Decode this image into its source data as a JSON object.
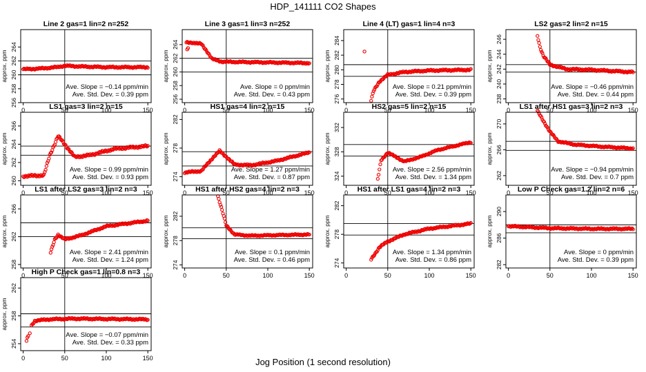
{
  "page": {
    "title": "HDP_141111  CO2 Shapes",
    "xlabel": "Jog Position (1 second resolution)"
  },
  "chart_data": [
    {
      "type": "scatter",
      "title": "Line 2 gas=1 lin=2 n=252",
      "ylabel": "approx. ppm",
      "xlim": [
        -3,
        154
      ],
      "ylim": [
        256,
        266.5
      ],
      "yticks": [
        256,
        258,
        260,
        262,
        264
      ],
      "xticks": [
        0,
        50,
        100,
        150
      ],
      "hlines": [
        262,
        260
      ],
      "vline": 50,
      "annotation": [
        "Ave. Slope = −0.14  ppm/min",
        "Ave. Std. Dev. = 0.39  ppm"
      ],
      "curve": {
        "start": 0,
        "end": 150,
        "points": [
          [
            0,
            260.8
          ],
          [
            20,
            260.9
          ],
          [
            40,
            261.1
          ],
          [
            50,
            261.3
          ],
          [
            70,
            261.2
          ],
          [
            100,
            261.1
          ],
          [
            150,
            261.1
          ]
        ]
      }
    },
    {
      "type": "scatter",
      "title": "Line 3 gas=1 lin=3 n=252",
      "ylabel": "approx. ppm",
      "xlim": [
        -3,
        154
      ],
      "ylim": [
        255.5,
        266.2
      ],
      "yticks": [
        256,
        258,
        260,
        262,
        264
      ],
      "xticks": [
        0,
        50,
        100,
        150
      ],
      "hlines": [
        262,
        260
      ],
      "vline": 50,
      "annotation": [
        "Ave. Slope = 0  ppm/min",
        "Ave. Std. Dev. = 0.43  ppm"
      ],
      "curve": {
        "start": 2,
        "end": 150,
        "points": [
          [
            2,
            264.3
          ],
          [
            10,
            264.3
          ],
          [
            20,
            264.1
          ],
          [
            27,
            263.0
          ],
          [
            33,
            261.9
          ],
          [
            45,
            261.5
          ],
          [
            150,
            261.3
          ]
        ]
      },
      "outliers": [
        [
          3,
          263.3
        ],
        [
          4,
          263.5
        ]
      ]
    },
    {
      "type": "scatter",
      "title": "Line 4 (LT) gas=1 lin=4 n=3",
      "ylabel": "approx. ppm",
      "xlim": [
        -3,
        154
      ],
      "ylim": [
        275.5,
        285.5
      ],
      "yticks": [
        276,
        278,
        280,
        282,
        284
      ],
      "xticks": [
        0,
        50,
        100,
        150
      ],
      "hlines": [
        280.7,
        279.1
      ],
      "vline": 50,
      "annotation": [
        "Ave. Slope = 0.21  ppm/min",
        "Ave. Std. Dev. = 0.39  ppm"
      ],
      "curve": {
        "start": 30,
        "end": 150,
        "points": [
          [
            30,
            275.8
          ],
          [
            33,
            277.1
          ],
          [
            40,
            278.4
          ],
          [
            50,
            279.3
          ],
          [
            70,
            279.7
          ],
          [
            100,
            279.9
          ],
          [
            150,
            280.0
          ]
        ]
      },
      "outliers": [
        [
          22,
          282.5
        ]
      ]
    },
    {
      "type": "scatter",
      "title": "LS2 gas=2 lin=2 n=15",
      "ylabel": "approx. ppm",
      "xlim": [
        -3,
        154
      ],
      "ylim": [
        237.5,
        247.3
      ],
      "yticks": [
        238,
        240,
        242,
        244,
        246
      ],
      "xticks": [
        0,
        50,
        100,
        150
      ],
      "hlines": [
        242.6,
        241.6
      ],
      "vline": 50,
      "annotation": [
        "Ave. Slope = −0.46  ppm/min",
        "Ave. Std. Dev. = 0.44  ppm"
      ],
      "curve": {
        "start": 35,
        "end": 150,
        "points": [
          [
            35,
            246.5
          ],
          [
            38,
            245.0
          ],
          [
            42,
            243.8
          ],
          [
            50,
            242.6
          ],
          [
            70,
            242.0
          ],
          [
            100,
            241.9
          ],
          [
            150,
            241.6
          ]
        ]
      }
    },
    {
      "type": "scatter",
      "title": "LS1 gas=3 lin=2 n=15",
      "ylabel": "approx. ppm",
      "xlim": [
        -3,
        154
      ],
      "ylim": [
        259.5,
        267.5
      ],
      "yticks": [
        260,
        262,
        264,
        266
      ],
      "xticks": [
        0,
        50,
        100,
        150
      ],
      "hlines": [
        263.8,
        262.8
      ],
      "vline": 50,
      "annotation": [
        "Ave. Slope = 0.99  ppm/min",
        "Ave. Std. Dev. = 0.93  ppm"
      ],
      "curve": {
        "start": 0,
        "end": 150,
        "points": [
          [
            0,
            260.5
          ],
          [
            25,
            260.6
          ],
          [
            32,
            262.8
          ],
          [
            42,
            264.9
          ],
          [
            50,
            264.0
          ],
          [
            62,
            262.6
          ],
          [
            80,
            262.8
          ],
          [
            110,
            263.5
          ],
          [
            150,
            263.8
          ]
        ]
      }
    },
    {
      "type": "scatter",
      "title": "HS1 gas=4 lin=2 n=15",
      "ylabel": "approx. ppm",
      "xlim": [
        -3,
        154
      ],
      "ylim": [
        272.8,
        283
      ],
      "yticks": [
        274,
        278,
        282
      ],
      "xticks": [
        0,
        50,
        100,
        150
      ],
      "hlines": [
        277.5,
        275.5
      ],
      "vline": 50,
      "annotation": [
        "Ave. Slope = 1.27  ppm/min",
        "Ave. Std. Dev. = 0.87  ppm"
      ],
      "curve": {
        "start": 0,
        "end": 150,
        "points": [
          [
            0,
            274.6
          ],
          [
            20,
            274.8
          ],
          [
            35,
            276.8
          ],
          [
            42,
            277.6
          ],
          [
            50,
            276.8
          ],
          [
            60,
            275.7
          ],
          [
            80,
            275.6
          ],
          [
            110,
            276.2
          ],
          [
            150,
            277.4
          ]
        ]
      }
    },
    {
      "type": "scatter",
      "title": "HS2 gas=5 lin=2 n=15",
      "ylabel": "approx. ppm",
      "xlim": [
        -3,
        154
      ],
      "ylim": [
        322.5,
        334.5
      ],
      "yticks": [
        324,
        328,
        332
      ],
      "xticks": [
        0,
        50,
        100,
        150
      ],
      "hlines": [
        329.2,
        327.3
      ],
      "vline": 50,
      "annotation": [
        "Ave. Slope = 2.56  ppm/min",
        "Ave. Std. Dev. = 1.34  ppm"
      ],
      "curve": {
        "start": 38,
        "end": 150,
        "points": [
          [
            38,
            323.5
          ],
          [
            42,
            326.6
          ],
          [
            50,
            327.9
          ],
          [
            70,
            326.4
          ],
          [
            90,
            327.2
          ],
          [
            110,
            328.3
          ],
          [
            150,
            329.6
          ]
        ]
      }
    },
    {
      "type": "scatter",
      "title": "LS1 after HS1 gas=3 lin=2 n=3",
      "ylabel": "approx. ppm",
      "xlim": [
        -3,
        154
      ],
      "ylim": [
        260.5,
        271.8
      ],
      "yticks": [
        262,
        266,
        270
      ],
      "xticks": [
        0,
        50,
        100,
        150
      ],
      "hlines": [
        267.3,
        265.9
      ],
      "vline": 50,
      "annotation": [
        "Ave. Slope = −0.94  ppm/min",
        "Ave. Std. Dev. = 0.7  ppm"
      ],
      "curve": {
        "start": 35,
        "end": 150,
        "points": [
          [
            35,
            272.0
          ],
          [
            42,
            270.5
          ],
          [
            50,
            268.8
          ],
          [
            60,
            267.3
          ],
          [
            80,
            266.8
          ],
          [
            110,
            266.5
          ],
          [
            150,
            266.2
          ]
        ]
      }
    },
    {
      "type": "scatter",
      "title": "LS1 after LS2 gas=3 lin=2 n=3",
      "ylabel": "approx. ppm",
      "xlim": [
        -3,
        154
      ],
      "ylim": [
        257.5,
        268
      ],
      "yticks": [
        258,
        262,
        266
      ],
      "xticks": [
        0,
        50,
        100,
        150
      ],
      "hlines": [
        264.0,
        262.0
      ],
      "vline": 50,
      "annotation": [
        "Ave. Slope = 2.41  ppm/min",
        "Ave. Std. Dev. = 1.24  ppm"
      ],
      "curve": {
        "start": 33,
        "end": 150,
        "points": [
          [
            33,
            259.7
          ],
          [
            38,
            261.6
          ],
          [
            42,
            262.3
          ],
          [
            50,
            261.6
          ],
          [
            70,
            262.2
          ],
          [
            100,
            263.5
          ],
          [
            150,
            264.3
          ]
        ]
      }
    },
    {
      "type": "scatter",
      "title": "HS1 after HS2 gas=4 lin=2 n=3",
      "ylabel": "approx. ppm",
      "xlim": [
        -3,
        154
      ],
      "ylim": [
        273.5,
        285.5
      ],
      "yticks": [
        274,
        278,
        282
      ],
      "xticks": [
        0,
        50,
        100,
        150
      ],
      "hlines": [
        280.1,
        278.3
      ],
      "vline": 50,
      "annotation": [
        "Ave. Slope = 0.1  ppm/min",
        "Ave. Std. Dev. = 0.46  ppm"
      ],
      "curve": {
        "start": 40,
        "end": 150,
        "points": [
          [
            40,
            285.3
          ],
          [
            45,
            283.0
          ],
          [
            50,
            280.5
          ],
          [
            60,
            279.0
          ],
          [
            80,
            278.8
          ],
          [
            110,
            278.9
          ],
          [
            150,
            279.0
          ]
        ]
      }
    },
    {
      "type": "scatter",
      "title": "HS1 after LS1 gas=4 lin=2 n=3",
      "ylabel": "approx. ppm",
      "xlim": [
        -3,
        154
      ],
      "ylim": [
        273.3,
        283.5
      ],
      "yticks": [
        274,
        278,
        282
      ],
      "xticks": [
        0,
        50,
        100,
        150
      ],
      "hlines": [
        279.5,
        277.9
      ],
      "vline": 50,
      "annotation": [
        "Ave. Slope = 1.34  ppm/min",
        "Ave. Std. Dev. = 0.86  ppm"
      ],
      "curve": {
        "start": 30,
        "end": 150,
        "points": [
          [
            30,
            274.5
          ],
          [
            40,
            276.2
          ],
          [
            50,
            277.0
          ],
          [
            70,
            278.0
          ],
          [
            100,
            278.8
          ],
          [
            150,
            279.5
          ]
        ]
      }
    },
    {
      "type": "scatter",
      "title": "Low P Check gas=1.2 lin=2 n=6",
      "ylabel": "approx. ppm",
      "xlim": [
        -3,
        154
      ],
      "ylim": [
        281.5,
        292.5
      ],
      "yticks": [
        282,
        286,
        290
      ],
      "xticks": [
        0,
        50,
        100,
        150
      ],
      "hlines": [
        288.0,
        286.8
      ],
      "vline": 50,
      "annotation": [
        "Ave. Slope = 0  ppm/min",
        "Ave. Std. Dev. = 0.39  ppm"
      ],
      "curve": {
        "start": 0,
        "end": 150,
        "points": [
          [
            0,
            287.8
          ],
          [
            50,
            287.5
          ],
          [
            100,
            287.4
          ],
          [
            150,
            287.4
          ]
        ]
      }
    },
    {
      "type": "scatter",
      "title": "High P Check gas=1 lin=0.8 n=3",
      "ylabel": "approx. ppm",
      "xlim": [
        -3,
        154
      ],
      "ylim": [
        253,
        263.5
      ],
      "yticks": [
        254,
        258,
        262
      ],
      "xticks": [
        0,
        50,
        100,
        150
      ],
      "hlines": [
        258.3,
        256.4
      ],
      "vline": 50,
      "annotation": [
        "Ave. Slope = −0.07  ppm/min",
        "Ave. Std. Dev. = 0.33  ppm"
      ],
      "curve": {
        "start": 10,
        "end": 150,
        "points": [
          [
            10,
            256.6
          ],
          [
            14,
            257.3
          ],
          [
            30,
            257.5
          ],
          [
            60,
            257.6
          ],
          [
            150,
            257.5
          ]
        ]
      },
      "outliers": [
        [
          4,
          254.4
        ],
        [
          5,
          254.9
        ],
        [
          6,
          255.1
        ],
        [
          8,
          255.5
        ]
      ]
    }
  ],
  "colors": {
    "points": "#ee0000",
    "axes": "#000000",
    "background": "#ffffff"
  }
}
